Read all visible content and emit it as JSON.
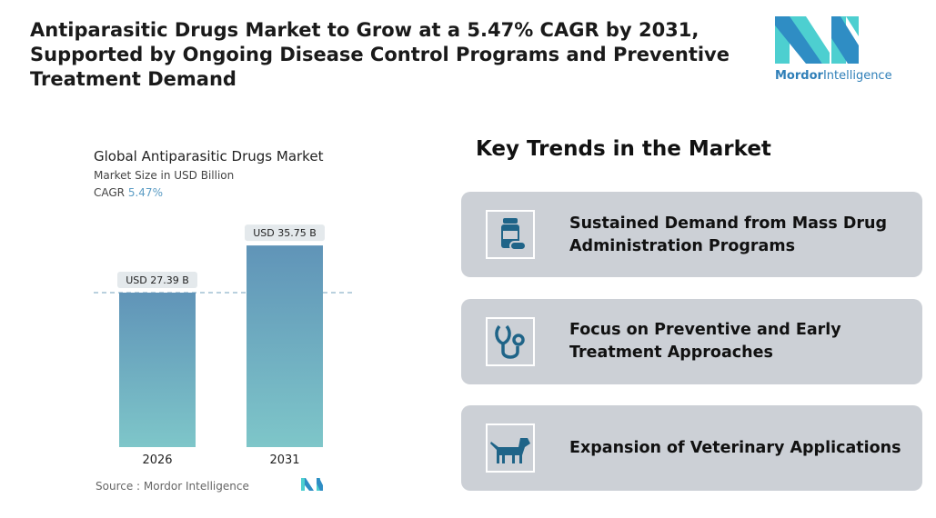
{
  "title": "Antiparasitic Drugs Market to Grow at a 5.47% CAGR by 2031, Supported by Ongoing Disease Control Programs and Preventive Treatment Demand",
  "logo": {
    "part1": "Mordor",
    "part2": "Intelligence",
    "colors": [
      "#2f8dc4",
      "#4dcfd0"
    ]
  },
  "chart_data": {
    "type": "bar",
    "title": "Global Antiparasitic Drugs Market",
    "subtitle": "Market Size in USD Billion",
    "cagr_label": "CAGR",
    "cagr_value": "5.47%",
    "categories": [
      "2026",
      "2031"
    ],
    "values": [
      27.39,
      35.75
    ],
    "data_labels": [
      "USD 27.39 B",
      "USD 35.75 B"
    ],
    "ylim": [
      0,
      40
    ],
    "reference_line": "dashed at 2026 value",
    "colors": {
      "top": "#6094b8",
      "bottom": "#7ec6c9"
    },
    "source": "Source :  Mordor Intelligence"
  },
  "trends": {
    "heading": "Key Trends in the Market",
    "items": [
      {
        "icon": "medicine-bottle-icon",
        "label": "Sustained Demand from Mass Drug Administration Programs"
      },
      {
        "icon": "stethoscope-icon",
        "label": "Focus on Preventive and Early Treatment Approaches"
      },
      {
        "icon": "dog-icon",
        "label": "Expansion of Veterinary Applications"
      }
    ],
    "icon_color": "#1f6488"
  }
}
